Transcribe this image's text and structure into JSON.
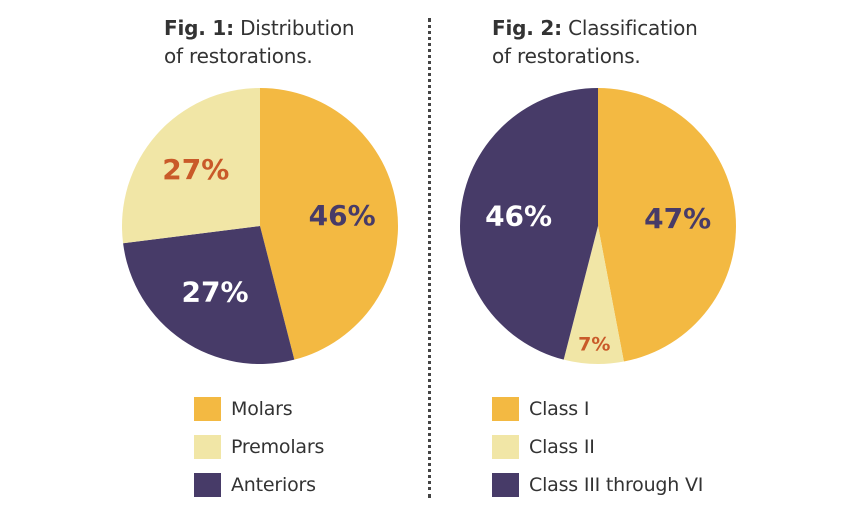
{
  "chart_data": [
    {
      "type": "pie",
      "title_prefix": "Fig. 1:",
      "title_line1": "Distribution",
      "title_line2": "of restorations.",
      "slices": [
        {
          "name": "Molars",
          "value": 46,
          "label": "46%",
          "color": "#F3B942",
          "label_color": "#473B68"
        },
        {
          "name": "Anteriors",
          "value": 27,
          "label": "27%",
          "color": "#473B68",
          "label_color": "#FFFFFF"
        },
        {
          "name": "Premolars",
          "value": 27,
          "label": "27%",
          "color": "#F1E6A6",
          "label_color": "#C95A29"
        }
      ],
      "legend": [
        {
          "label": "Molars",
          "color": "#F3B942"
        },
        {
          "label": "Premolars",
          "color": "#F1E6A6"
        },
        {
          "label": "Anteriors",
          "color": "#473B68"
        }
      ]
    },
    {
      "type": "pie",
      "title_prefix": "Fig. 2:",
      "title_line1": "Classification",
      "title_line2": "of restorations.",
      "slices": [
        {
          "name": "Class I",
          "value": 47,
          "label": "47%",
          "color": "#F3B942",
          "label_color": "#473B68"
        },
        {
          "name": "Class II",
          "value": 7,
          "label": "7%",
          "color": "#F1E6A6",
          "label_color": "#C95A29"
        },
        {
          "name": "Class III through VI",
          "value": 46,
          "label": "46%",
          "color": "#473B68",
          "label_color": "#FFFFFF"
        }
      ],
      "legend": [
        {
          "label": "Class I",
          "color": "#F3B942"
        },
        {
          "label": "Class II",
          "color": "#F1E6A6"
        },
        {
          "label": "Class III through VI",
          "color": "#473B68"
        }
      ]
    }
  ]
}
